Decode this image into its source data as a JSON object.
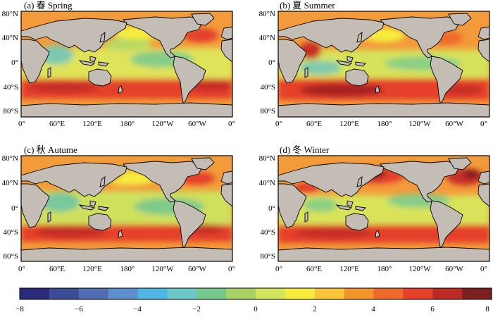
{
  "panels": [
    {
      "id": "spring",
      "title": "(a) 春 Spring"
    },
    {
      "id": "summer",
      "title": "(b) 夏 Summer"
    },
    {
      "id": "autumn",
      "title": "(c) 秋 Autume"
    },
    {
      "id": "winter",
      "title": "(d) 冬 Winter"
    }
  ],
  "lat_ticks": [
    "80°N",
    "40°N",
    "0°",
    "40°S",
    "80°S"
  ],
  "lon_ticks": [
    "0°",
    "60°E",
    "120°E",
    "180°",
    "120°W",
    "60°W",
    "0°"
  ],
  "colorbar": {
    "tick_labels": [
      "−8",
      "−6",
      "−4",
      "−2",
      "0",
      "2",
      "4",
      "6",
      "8"
    ],
    "colors": [
      "#2c2a7a",
      "#3c4d96",
      "#4f6db0",
      "#5d8ed0",
      "#4fb6e6",
      "#6cc7c8",
      "#74c98a",
      "#a8d266",
      "#d3e35a",
      "#f7ec3c",
      "#f7c43a",
      "#f4952c",
      "#ee6a2a",
      "#e4402a",
      "#bc2a26",
      "#7c1f1f"
    ]
  },
  "palette": {
    "land": "#c3bdb6",
    "ocean_bg": "#f39a3a",
    "frame": "#000000"
  }
}
